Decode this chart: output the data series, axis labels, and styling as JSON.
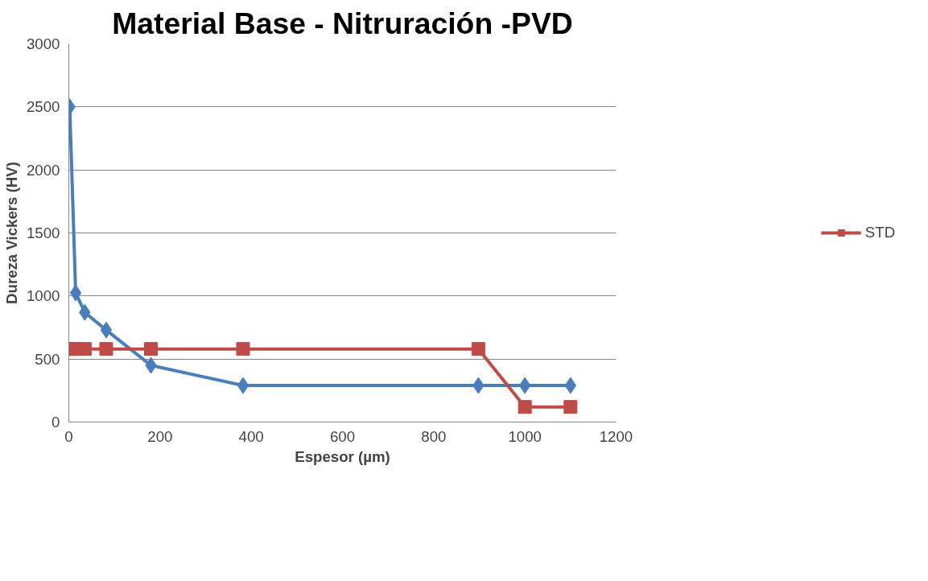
{
  "chart_data": {
    "type": "line",
    "title": "Material Base - Nitruración -PVD",
    "xlabel": "Espesor (µm)",
    "ylabel": "Dureza Vickers (HV)",
    "xlim": [
      0,
      1200
    ],
    "xticks": [
      0,
      200,
      400,
      600,
      800,
      1000,
      1200
    ],
    "ylim": [
      0,
      3000
    ],
    "yticks": [
      0,
      500,
      1000,
      1500,
      2000,
      2500,
      3000
    ],
    "grid": "y",
    "legend": "right",
    "series": [
      {
        "color": "#4a7ebb",
        "marker": "diamond",
        "x": [
          2,
          15,
          35,
          82,
          180,
          382,
          898,
          1000,
          1100
        ],
        "values": [
          2500,
          1025,
          870,
          730,
          450,
          290,
          290,
          290,
          290
        ]
      },
      {
        "name": "STD",
        "color": "#be4b48",
        "marker": "square",
        "x": [
          2,
          15,
          35,
          82,
          180,
          382,
          898,
          1000,
          1100
        ],
        "values": [
          580,
          580,
          580,
          580,
          580,
          580,
          580,
          120,
          120
        ]
      }
    ]
  }
}
